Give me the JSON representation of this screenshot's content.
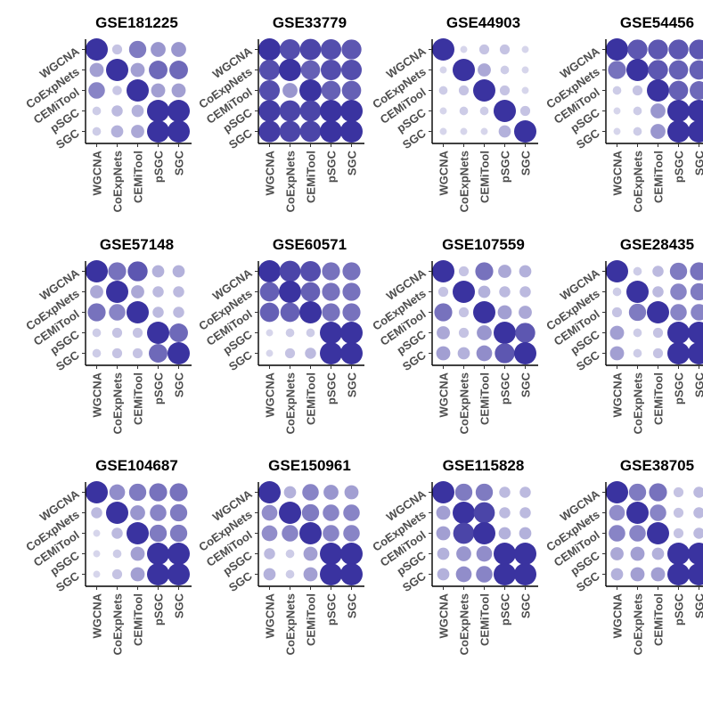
{
  "colors": {
    "dot_max": "#3a33a0",
    "dot_min": "#ffffff"
  },
  "chart_data": {
    "type": "dotplot-matrix",
    "methods": [
      "WGCNA",
      "CoExpNets",
      "CEMiTool",
      "pSGC",
      "SGC"
    ],
    "note_scale": "cell value 0-1: dot size and color intensity both increase with value",
    "panels": [
      {
        "title": "GSE181225",
        "values": [
          [
            1.0,
            0.2,
            0.6,
            0.45,
            0.45
          ],
          [
            0.4,
            1.0,
            0.4,
            0.7,
            0.7
          ],
          [
            0.55,
            0.18,
            1.0,
            0.4,
            0.4
          ],
          [
            0.15,
            0.25,
            0.3,
            1.0,
            1.0
          ],
          [
            0.15,
            0.3,
            0.35,
            1.0,
            1.0
          ]
        ]
      },
      {
        "title": "GSE33779",
        "values": [
          [
            1.0,
            0.85,
            0.9,
            0.85,
            0.8
          ],
          [
            0.85,
            1.0,
            0.75,
            0.85,
            0.85
          ],
          [
            0.85,
            0.45,
            1.0,
            0.75,
            0.75
          ],
          [
            0.95,
            0.9,
            0.9,
            1.0,
            1.0
          ],
          [
            0.95,
            0.9,
            0.9,
            1.0,
            1.0
          ]
        ]
      },
      {
        "title": "GSE44903",
        "values": [
          [
            1.0,
            0.1,
            0.2,
            0.2,
            0.1
          ],
          [
            0.1,
            1.0,
            0.35,
            0.15,
            0.1
          ],
          [
            0.15,
            0.2,
            1.0,
            0.2,
            0.1
          ],
          [
            0.1,
            0.15,
            0.15,
            1.0,
            0.2
          ],
          [
            0.1,
            0.1,
            0.1,
            0.3,
            1.0
          ]
        ]
      },
      {
        "title": "GSE54456",
        "values": [
          [
            1.0,
            0.8,
            0.8,
            0.8,
            0.8
          ],
          [
            0.65,
            1.0,
            0.8,
            0.75,
            0.75
          ],
          [
            0.15,
            0.2,
            1.0,
            0.75,
            0.7
          ],
          [
            0.1,
            0.15,
            0.45,
            1.0,
            1.0
          ],
          [
            0.1,
            0.15,
            0.45,
            1.0,
            1.0
          ]
        ]
      },
      {
        "title": "GSE57148",
        "values": [
          [
            1.0,
            0.65,
            0.8,
            0.3,
            0.3
          ],
          [
            0.35,
            1.0,
            0.35,
            0.25,
            0.25
          ],
          [
            0.65,
            0.55,
            1.0,
            0.25,
            0.25
          ],
          [
            0.15,
            0.2,
            0.2,
            1.0,
            0.7
          ],
          [
            0.15,
            0.2,
            0.2,
            0.7,
            1.0
          ]
        ]
      },
      {
        "title": "GSE60571",
        "values": [
          [
            1.0,
            0.9,
            0.85,
            0.65,
            0.65
          ],
          [
            0.75,
            1.0,
            0.75,
            0.65,
            0.65
          ],
          [
            0.75,
            0.75,
            1.0,
            0.65,
            0.65
          ],
          [
            0.1,
            0.15,
            0.15,
            1.0,
            1.0
          ],
          [
            0.1,
            0.2,
            0.25,
            1.0,
            1.0
          ]
        ]
      },
      {
        "title": "GSE107559",
        "values": [
          [
            1.0,
            0.2,
            0.65,
            0.35,
            0.3
          ],
          [
            0.2,
            1.0,
            0.3,
            0.25,
            0.25
          ],
          [
            0.65,
            0.2,
            1.0,
            0.4,
            0.35
          ],
          [
            0.35,
            0.2,
            0.45,
            1.0,
            0.8
          ],
          [
            0.4,
            0.3,
            0.5,
            0.8,
            1.0
          ]
        ]
      },
      {
        "title": "GSE28435",
        "values": [
          [
            1.0,
            0.15,
            0.25,
            0.6,
            0.65
          ],
          [
            0.15,
            1.0,
            0.25,
            0.55,
            0.6
          ],
          [
            0.2,
            0.6,
            1.0,
            0.55,
            0.55
          ],
          [
            0.4,
            0.15,
            0.2,
            1.0,
            1.0
          ],
          [
            0.4,
            0.15,
            0.2,
            1.0,
            1.0
          ]
        ]
      },
      {
        "title": "GSE104687",
        "values": [
          [
            1.0,
            0.5,
            0.6,
            0.65,
            0.65
          ],
          [
            0.25,
            1.0,
            0.45,
            0.55,
            0.6
          ],
          [
            0.1,
            0.25,
            1.0,
            0.6,
            0.6
          ],
          [
            0.1,
            0.15,
            0.4,
            1.0,
            1.0
          ],
          [
            0.1,
            0.2,
            0.4,
            1.0,
            1.0
          ]
        ]
      },
      {
        "title": "GSE150961",
        "values": [
          [
            1.0,
            0.3,
            0.55,
            0.45,
            0.4
          ],
          [
            0.5,
            1.0,
            0.6,
            0.55,
            0.55
          ],
          [
            0.5,
            0.55,
            1.0,
            0.55,
            0.55
          ],
          [
            0.25,
            0.15,
            0.4,
            1.0,
            1.0
          ],
          [
            0.3,
            0.15,
            0.4,
            1.0,
            1.0
          ]
        ]
      },
      {
        "title": "GSE115828",
        "values": [
          [
            1.0,
            0.6,
            0.6,
            0.25,
            0.25
          ],
          [
            0.4,
            1.0,
            0.9,
            0.25,
            0.25
          ],
          [
            0.4,
            0.9,
            1.0,
            0.3,
            0.3
          ],
          [
            0.3,
            0.45,
            0.5,
            1.0,
            1.0
          ],
          [
            0.3,
            0.5,
            0.55,
            1.0,
            1.0
          ]
        ]
      },
      {
        "title": "GSE38705",
        "values": [
          [
            1.0,
            0.6,
            0.65,
            0.2,
            0.25
          ],
          [
            0.5,
            1.0,
            0.55,
            0.2,
            0.25
          ],
          [
            0.55,
            0.55,
            1.0,
            0.2,
            0.25
          ],
          [
            0.35,
            0.4,
            0.3,
            1.0,
            1.0
          ],
          [
            0.3,
            0.4,
            0.4,
            1.0,
            1.0
          ]
        ]
      }
    ]
  }
}
